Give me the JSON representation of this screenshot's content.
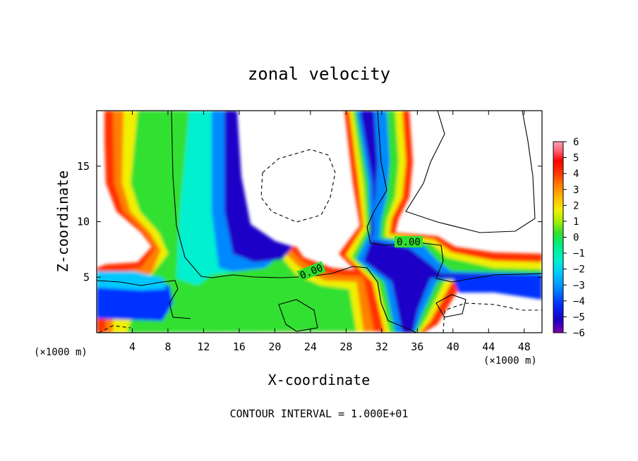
{
  "chart_data": {
    "type": "heatmap",
    "title": "zonal velocity",
    "xlabel": "X-coordinate",
    "ylabel": "Z-coordinate",
    "x_unit": "(×1000 m)",
    "x_unit_right": "(×1000 m)",
    "xlim": [
      0,
      50
    ],
    "ylim": [
      0,
      20
    ],
    "xticks": [
      "4",
      "8",
      "12",
      "16",
      "20",
      "24",
      "28",
      "32",
      "36",
      "40",
      "44",
      "48"
    ],
    "yticks": [
      "5",
      "10",
      "15"
    ],
    "contour_interval_text": "CONTOUR INTERVAL = 1.000E+01",
    "contour_labels": [
      "0.00",
      "0.00"
    ],
    "colorbar": {
      "ticks": [
        "6",
        "5",
        "4",
        "3",
        "2",
        "1",
        "0",
        "−1",
        "−2",
        "−3",
        "−4",
        "−5",
        "−6"
      ],
      "range": [
        -6,
        6
      ],
      "colors": [
        "#7a00a8",
        "#1a00c8",
        "#0030ff",
        "#0088ff",
        "#00c8ff",
        "#00f0d0",
        "#00f080",
        "#30e030",
        "#a0f000",
        "#f0f000",
        "#ffc000",
        "#ff8000",
        "#ff3000",
        "#ff0000",
        "#ff6070",
        "#ffa0b0"
      ]
    }
  }
}
